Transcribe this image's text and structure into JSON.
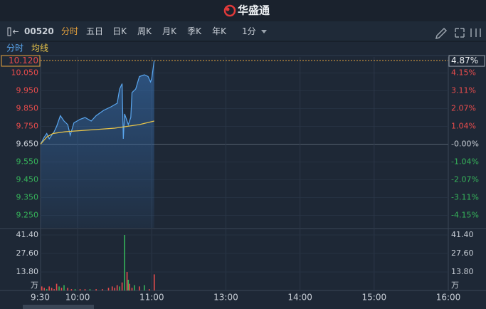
{
  "app": {
    "brand": "华盛通"
  },
  "toolbar": {
    "symbol": "00520",
    "tabs": [
      "分时",
      "五日",
      "日K",
      "周K",
      "月K",
      "季K",
      "年K"
    ],
    "active": 0,
    "interval": "1分"
  },
  "chart_data": {
    "type": "line",
    "grid": true,
    "up_color": "#e84c4c",
    "down_color": "#36b35a",
    "flat_color": "#c8ced6",
    "series": [
      {
        "name": "分时",
        "color": "#5aa6ee",
        "x": [
          0,
          3,
          5,
          7,
          11,
          13,
          16,
          19,
          22,
          24,
          27,
          32,
          36,
          41,
          45,
          51,
          57,
          62,
          64,
          66,
          67,
          68,
          71,
          73,
          74,
          77,
          80,
          84,
          87,
          89,
          90,
          92
        ],
        "values": [
          9.65,
          9.69,
          9.71,
          9.68,
          9.72,
          9.75,
          9.81,
          9.78,
          9.76,
          9.7,
          9.77,
          9.79,
          9.8,
          9.78,
          9.81,
          9.84,
          9.86,
          9.88,
          9.96,
          9.99,
          9.68,
          9.82,
          9.76,
          9.8,
          9.94,
          9.96,
          10.03,
          10.04,
          10.03,
          10.0,
          10.02,
          10.12
        ]
      },
      {
        "name": "均线",
        "color": "#e8c44a",
        "x": [
          0,
          5,
          10,
          20,
          40,
          60,
          80,
          92
        ],
        "values": [
          9.65,
          9.69,
          9.71,
          9.72,
          9.73,
          9.74,
          9.76,
          9.78
        ]
      }
    ],
    "xlim": [
      0,
      330
    ],
    "xticks": [
      {
        "value": 0,
        "label": "9:30"
      },
      {
        "value": 30,
        "label": "10:00"
      },
      {
        "value": 90,
        "label": "11:00"
      },
      {
        "value": 150,
        "label": "13:00"
      },
      {
        "value": 210,
        "label": "14:00"
      },
      {
        "value": 270,
        "label": "15:00"
      },
      {
        "value": 330,
        "label": "16:00"
      }
    ],
    "ylim": [
      9.18,
      10.14
    ],
    "yticks": [
      {
        "value": 10.05,
        "label": "10.050"
      },
      {
        "value": 9.95,
        "label": "9.950"
      },
      {
        "value": 9.85,
        "label": "9.850"
      },
      {
        "value": 9.75,
        "label": "9.750"
      },
      {
        "value": 9.65,
        "label": "9.650"
      },
      {
        "value": 9.55,
        "label": "9.550"
      },
      {
        "value": 9.45,
        "label": "9.450"
      },
      {
        "value": 9.35,
        "label": "9.350"
      },
      {
        "value": 9.25,
        "label": "9.250"
      }
    ],
    "y2lim": [
      -4.87,
      5.08
    ],
    "y2ticks": [
      {
        "value": 4.15,
        "label": "4.15%"
      },
      {
        "value": 3.11,
        "label": "3.11%"
      },
      {
        "value": 2.07,
        "label": "2.07%"
      },
      {
        "value": 1.04,
        "label": "1.04%"
      },
      {
        "value": 0,
        "label": "-0.00%"
      },
      {
        "value": -1.04,
        "label": "-1.04%"
      },
      {
        "value": -2.07,
        "label": "-2.07%"
      },
      {
        "value": -3.11,
        "label": "-3.11%"
      },
      {
        "value": -4.15,
        "label": "-4.15%"
      }
    ],
    "last": {
      "value": 10.12,
      "label": "10.120"
    },
    "last_pct": {
      "value": 4.87,
      "label": "4.87%"
    },
    "volume": {
      "type": "bar",
      "unit": "万",
      "x": [
        1,
        3,
        5,
        7,
        9,
        11,
        13,
        15,
        17,
        19,
        22,
        25,
        28,
        32,
        36,
        40,
        45,
        50,
        55,
        58,
        60,
        62,
        64,
        66,
        68,
        70,
        71,
        72,
        74,
        76,
        80,
        84,
        88,
        92
      ],
      "values": [
        3,
        2,
        1,
        3,
        2,
        1,
        5,
        3,
        2,
        4,
        2,
        1,
        1,
        1,
        1,
        1,
        1,
        1,
        2,
        3,
        2,
        4,
        3,
        6,
        41.4,
        13.8,
        8,
        5,
        2,
        4,
        3,
        4,
        1,
        12
      ],
      "colors": [
        "#e84c4c",
        "#e84c4c",
        "#36b35a",
        "#e84c4c",
        "#e84c4c",
        "#e84c4c",
        "#e84c4c",
        "#36b35a",
        "#e84c4c",
        "#36b35a",
        "#e84c4c",
        "#e84c4c",
        "#36b35a",
        "#e84c4c",
        "#e84c4c",
        "#36b35a",
        "#e84c4c",
        "#e84c4c",
        "#e84c4c",
        "#e84c4c",
        "#e84c4c",
        "#e84c4c",
        "#36b35a",
        "#e84c4c",
        "#36b35a",
        "#e84c4c",
        "#36b35a",
        "#e84c4c",
        "#e84c4c",
        "#36b35a",
        "#e84c4c",
        "#36b35a",
        "#e84c4c",
        "#e84c4c"
      ],
      "ylim": [
        0,
        45.65
      ],
      "yticks": [
        {
          "value": 41.4,
          "label": "41.40"
        },
        {
          "value": 27.6,
          "label": "27.60"
        },
        {
          "value": 13.8,
          "label": "13.80"
        }
      ]
    }
  }
}
